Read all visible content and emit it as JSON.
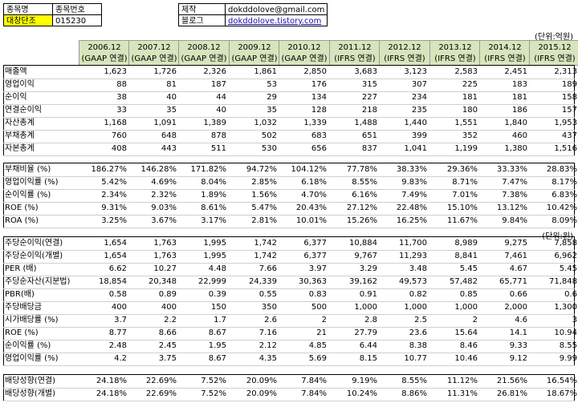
{
  "info": {
    "stock_name_label": "종목명",
    "stock_code_label": "종목번호",
    "stock_name": "대창단조",
    "stock_code": "015230",
    "maker_label": "제작",
    "maker_value": "dokddolove@gmail.com",
    "blog_label": "블로그",
    "blog_value": "dokddolove.tistory.com"
  },
  "unit_top": "(단위:억원)",
  "unit_mid": "(단위:원)",
  "headers": [
    {
      "year": "2006.12",
      "basis": "(GAAP 연결)"
    },
    {
      "year": "2007.12",
      "basis": "(GAAP 연결)"
    },
    {
      "year": "2008.12",
      "basis": "(GAAP 연결)"
    },
    {
      "year": "2009.12",
      "basis": "(GAAP 연결)"
    },
    {
      "year": "2010.12",
      "basis": "(GAAP 연결)"
    },
    {
      "year": "2011.12",
      "basis": "(IFRS 연결)"
    },
    {
      "year": "2012.12",
      "basis": "(IFRS 연결)"
    },
    {
      "year": "2013.12",
      "basis": "(IFRS 연결)"
    },
    {
      "year": "2014.12",
      "basis": "(IFRS 연결)"
    },
    {
      "year": "2015.12",
      "basis": "(IFRS 연결)"
    }
  ],
  "sections": [
    {
      "rows": [
        {
          "label": "매출액",
          "values": [
            "1,623",
            "1,726",
            "2,326",
            "1,861",
            "2,850",
            "3,683",
            "3,123",
            "2,583",
            "2,451",
            "2,313"
          ]
        },
        {
          "label": "영업이익",
          "values": [
            "88",
            "81",
            "187",
            "53",
            "176",
            "315",
            "307",
            "225",
            "183",
            "189"
          ]
        },
        {
          "label": "순이익",
          "values": [
            "38",
            "40",
            "44",
            "29",
            "134",
            "227",
            "234",
            "181",
            "181",
            "158"
          ]
        },
        {
          "label": "연결순이익",
          "values": [
            "33",
            "35",
            "40",
            "35",
            "128",
            "218",
            "235",
            "180",
            "186",
            "157"
          ]
        },
        {
          "label": "자산총계",
          "values": [
            "1,168",
            "1,091",
            "1,389",
            "1,032",
            "1,339",
            "1,488",
            "1,440",
            "1,551",
            "1,840",
            "1,953"
          ]
        },
        {
          "label": "부채총계",
          "values": [
            "760",
            "648",
            "878",
            "502",
            "683",
            "651",
            "399",
            "352",
            "460",
            "437"
          ]
        },
        {
          "label": "자본총계",
          "values": [
            "408",
            "443",
            "511",
            "530",
            "656",
            "837",
            "1,041",
            "1,199",
            "1,380",
            "1,516"
          ]
        }
      ]
    },
    {
      "rows": [
        {
          "label": "부채비율 (%)",
          "values": [
            "186.27%",
            "146.28%",
            "171.82%",
            "94.72%",
            "104.12%",
            "77.78%",
            "38.33%",
            "29.36%",
            "33.33%",
            "28.83%"
          ]
        },
        {
          "label": "영업이익률 (%)",
          "values": [
            "5.42%",
            "4.69%",
            "8.04%",
            "2.85%",
            "6.18%",
            "8.55%",
            "9.83%",
            "8.71%",
            "7.47%",
            "8.17%"
          ]
        },
        {
          "label": "순이익률 (%)",
          "values": [
            "2.34%",
            "2.32%",
            "1.89%",
            "1.56%",
            "4.70%",
            "6.16%",
            "7.49%",
            "7.01%",
            "7.38%",
            "6.83%"
          ]
        },
        {
          "label": "ROE (%)",
          "values": [
            "9.31%",
            "9.03%",
            "8.61%",
            "5.47%",
            "20.43%",
            "27.12%",
            "22.48%",
            "15.10%",
            "13.12%",
            "10.42%"
          ]
        },
        {
          "label": "ROA (%)",
          "values": [
            "3.25%",
            "3.67%",
            "3.17%",
            "2.81%",
            "10.01%",
            "15.26%",
            "16.25%",
            "11.67%",
            "9.84%",
            "8.09%"
          ]
        }
      ]
    },
    {
      "rows": [
        {
          "label": "주당순이익(연결)",
          "values": [
            "1,654",
            "1,763",
            "1,995",
            "1,742",
            "6,377",
            "10,884",
            "11,700",
            "8,989",
            "9,275",
            "7,858"
          ]
        },
        {
          "label": "주당순이익(개별)",
          "values": [
            "1,654",
            "1,763",
            "1,995",
            "1,742",
            "6,377",
            "9,767",
            "11,293",
            "8,841",
            "7,461",
            "6,962"
          ]
        },
        {
          "label": "PER (배)",
          "values": [
            "6.62",
            "10.27",
            "4.48",
            "7.66",
            "3.97",
            "3.29",
            "3.48",
            "5.45",
            "4.67",
            "5.45"
          ]
        },
        {
          "label": "주당순자산(지분법)",
          "values": [
            "18,854",
            "20,348",
            "22,999",
            "24,339",
            "30,363",
            "39,162",
            "49,573",
            "57,482",
            "65,771",
            "71,848"
          ]
        },
        {
          "label": "PBR(배)",
          "values": [
            "0.58",
            "0.89",
            "0.39",
            "0.55",
            "0.83",
            "0.91",
            "0.82",
            "0.85",
            "0.66",
            "0.6"
          ]
        },
        {
          "label": "주당배당금",
          "values": [
            "400",
            "400",
            "150",
            "350",
            "500",
            "1,000",
            "1,000",
            "1,000",
            "2,000",
            "1,300"
          ]
        },
        {
          "label": "시가배당률 (%)",
          "values": [
            "3.7",
            "2.2",
            "1.7",
            "2.6",
            "2",
            "2.8",
            "2.5",
            "2",
            "4.6",
            "3"
          ]
        },
        {
          "label": "ROE (%)",
          "values": [
            "8.77",
            "8.66",
            "8.67",
            "7.16",
            "21",
            "27.79",
            "23.6",
            "15.64",
            "14.1",
            "10.94"
          ]
        },
        {
          "label": "순이익률 (%)",
          "values": [
            "2.48",
            "2.45",
            "1.95",
            "2.12",
            "4.85",
            "6.44",
            "8.38",
            "8.46",
            "9.33",
            "8.55"
          ]
        },
        {
          "label": "영업이익률 (%)",
          "values": [
            "4.2",
            "3.75",
            "8.67",
            "4.35",
            "5.69",
            "8.15",
            "10.77",
            "10.46",
            "9.12",
            "9.99"
          ]
        }
      ]
    },
    {
      "rows": [
        {
          "label": "배당성향(연결)",
          "values": [
            "24.18%",
            "22.69%",
            "7.52%",
            "20.09%",
            "7.84%",
            "9.19%",
            "8.55%",
            "11.12%",
            "21.56%",
            "16.54%"
          ]
        },
        {
          "label": "배당성향(개별)",
          "values": [
            "24.18%",
            "22.69%",
            "7.52%",
            "20.09%",
            "7.84%",
            "10.24%",
            "8.86%",
            "11.31%",
            "26.81%",
            "18.67%"
          ]
        }
      ]
    }
  ],
  "colors": {
    "header_bg": "#d8e4bc",
    "stock_name_bg": "#ffff00",
    "link": "#1a0dab"
  }
}
